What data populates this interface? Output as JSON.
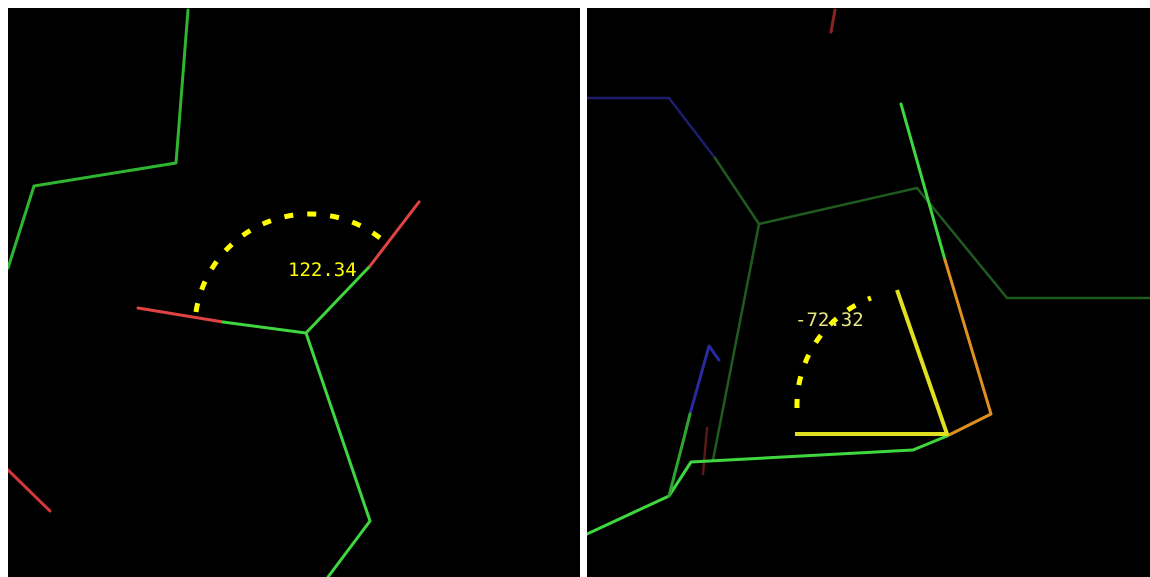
{
  "viewers": [
    {
      "measurement": {
        "type": "angle",
        "value": "122.34"
      }
    },
    {
      "measurement": {
        "type": "dihedral",
        "value": "-72.32"
      }
    }
  ],
  "colors": {
    "background": "#000000",
    "carbon_bond": "#3fd63f",
    "carbon_bond_dim": "#1f6a1f",
    "oxygen_bond": "#e04343",
    "nitrogen_bond": "#2a2aa0",
    "highlight_bond": "#e09020",
    "measurement": "#ffff00",
    "measurement_pale": "#e8e880"
  }
}
